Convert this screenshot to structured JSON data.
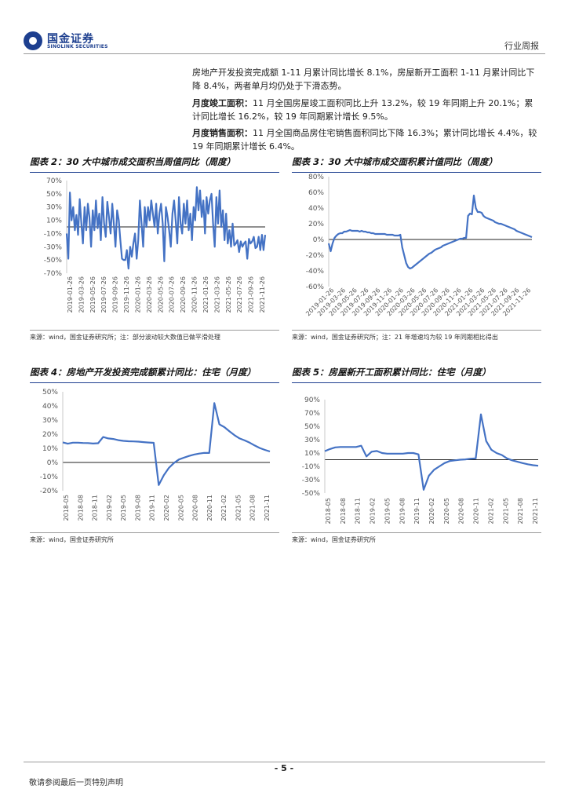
{
  "header": {
    "logo_cn": "国金证券",
    "logo_en": "SINOLINK SECURITIES",
    "doc_type": "行业周报"
  },
  "paragraphs": {
    "p1": "房地产开发投资完成额 1-11 月累计同比增长 8.1%，房屋新开工面积 1-11 月累计同比下降 8.4%，两者单月均仍处于下滑态势。",
    "p2_label": "月度竣工面积：",
    "p2_text": "11 月全国房屋竣工面积同比上升 13.2%，较 19 年同期上升 20.1%；累计同比增长 16.2%，较 19 年同期累计增长 9.5%。",
    "p3_label": "月度销售面积：",
    "p3_text": "11 月全国商品房住宅销售面积同比下降 16.3%；累计同比增长 4.4%，较 19 年同期累计增长 6.4%。"
  },
  "figures": {
    "fig2": {
      "title": "图表 2：30 大中城市成交面积当周值同比（周度）",
      "source": "来源：wind，国金证券研究所；注：部分波动较大数值已做平滑处理"
    },
    "fig3": {
      "title": "图表 3：30 大中城市成交面积累计值同比（周度）",
      "source": "来源：wind，国金证券研究所；注：21 年增速均为较 19 年同期相比得出"
    },
    "fig4": {
      "title": "图表 4：房地产开发投资完成额累计同比：住宅（月度）",
      "source": "来源：wind，国金证券研究所"
    },
    "fig5": {
      "title": "图表 5：房屋新开工面积累计同比：住宅（月度）",
      "source": "来源：wind，国金证券研究所"
    }
  },
  "footer": {
    "page_number": "- 5 -",
    "disclaimer": "敬请参阅最后一页特别声明"
  },
  "chart_data": [
    {
      "id": "fig2",
      "type": "line",
      "title": "30 大中城市成交面积当周值同比（周度）",
      "y_unit": "%",
      "ylim": [
        -70,
        70
      ],
      "yticks": [
        70,
        50,
        30,
        10,
        -10,
        -30,
        -50,
        -70
      ],
      "x_tick_labels": [
        "2019-01-26",
        "2019-03-26",
        "2019-05-26",
        "2019-07-26",
        "2019-09-26",
        "2019-11-26",
        "2020-01-26",
        "2020-03-26",
        "2020-05-26",
        "2020-07-26",
        "2020-09-26",
        "2020-11-26",
        "2021-01-26",
        "2021-03-26",
        "2021-05-26",
        "2021-07-26",
        "2021-09-26",
        "2021-11-26"
      ],
      "series": [
        {
          "name": "当周值同比",
          "color": "#4472c4",
          "values": [
            -10,
            -48,
            52,
            10,
            30,
            -5,
            18,
            -12,
            42,
            5,
            -25,
            30,
            -5,
            35,
            15,
            -30,
            25,
            -5,
            40,
            -2,
            20,
            -20,
            45,
            5,
            -15,
            38,
            15,
            -10,
            35,
            5,
            -30,
            25,
            10,
            -20,
            -48,
            -50,
            -50,
            -35,
            -63,
            -30,
            -45,
            -25,
            -10,
            -48,
            -20,
            40,
            5,
            -30,
            30,
            0,
            30,
            10,
            40,
            20,
            0,
            35,
            -10,
            20,
            35,
            5,
            -52,
            30,
            15,
            -5,
            -30,
            20,
            40,
            10,
            -25,
            45,
            5,
            -10,
            35,
            5,
            40,
            -5,
            20,
            -20,
            30,
            10,
            60,
            25,
            55,
            15,
            40,
            -10,
            45,
            20,
            40,
            50,
            5,
            -30,
            45,
            5,
            55,
            0,
            25,
            -20,
            20,
            -25,
            -5,
            -30,
            5,
            -28,
            -25,
            -20,
            -38,
            -22,
            -30,
            -25,
            -22,
            -48,
            -18,
            -25,
            -22,
            -15,
            -32,
            -30,
            -15,
            -35,
            -12,
            -35,
            -12
          ]
        }
      ]
    },
    {
      "id": "fig3",
      "type": "line",
      "title": "30 大中城市成交面积累计值同比（周度）",
      "y_unit": "%",
      "ylim": [
        -60,
        80
      ],
      "yticks": [
        80,
        60,
        40,
        20,
        0,
        -20,
        -40,
        -60
      ],
      "x_tick_labels": [
        "2019-01-26",
        "2019-03-26",
        "2019-05-26",
        "2019-07-26",
        "2019-09-26",
        "2019-11-26",
        "2020-01-26",
        "2020-03-26",
        "2020-05-26",
        "2020-07-26",
        "2020-09-26",
        "2020-11-26",
        "2021-01-26",
        "2021-03-26",
        "2021-05-26",
        "2021-07-26",
        "2021-09-26",
        "2021-11-26"
      ],
      "series": [
        {
          "name": "累计值同比",
          "color": "#4472c4",
          "values": [
            -5,
            -15,
            -5,
            2,
            5,
            7,
            8,
            8,
            10,
            10,
            11,
            12,
            11,
            11,
            11,
            11,
            10,
            11,
            10,
            10,
            9,
            9,
            8,
            8,
            7,
            7,
            7,
            7,
            7,
            7,
            6,
            6,
            6,
            6,
            5,
            5,
            5,
            6,
            -10,
            -20,
            -30,
            -35,
            -37,
            -36,
            -34,
            -32,
            -30,
            -28,
            -26,
            -24,
            -22,
            -20,
            -18,
            -17,
            -15,
            -13,
            -12,
            -11,
            -10,
            -8,
            -7,
            -6,
            -5,
            -4,
            -3,
            -2,
            -1,
            0,
            1,
            1,
            2,
            2,
            30,
            33,
            32,
            56,
            40,
            35,
            35,
            34,
            30,
            28,
            27,
            26,
            25,
            24,
            22,
            21,
            20,
            20,
            19,
            18,
            17,
            16,
            15,
            14,
            13,
            11,
            10,
            9,
            8,
            7,
            6,
            5,
            4,
            3
          ]
        }
      ]
    },
    {
      "id": "fig4",
      "type": "line",
      "title": "房地产开发投资完成额累计同比：住宅（月度）",
      "y_unit": "%",
      "ylim": [
        -20,
        50
      ],
      "yticks": [
        50,
        40,
        30,
        20,
        10,
        0,
        -10,
        -20
      ],
      "x_tick_labels": [
        "2018-05",
        "2018-08",
        "2018-11",
        "2019-02",
        "2019-05",
        "2019-08",
        "2019-11",
        "2020-02",
        "2020-05",
        "2020-08",
        "2020-11",
        "2021-02",
        "2021-05",
        "2021-08",
        "2021-11"
      ],
      "series": [
        {
          "name": "累计同比",
          "color": "#4472c4",
          "values": [
            14.2,
            13.3,
            14.0,
            14.0,
            13.8,
            13.7,
            13.4,
            13.6,
            18.0,
            17.0,
            16.6,
            15.8,
            15.3,
            15.0,
            14.9,
            14.7,
            14.4,
            14.1,
            13.9,
            -16.0,
            -9.0,
            -3.9,
            -0.4,
            2.1,
            3.4,
            4.6,
            5.6,
            6.3,
            6.8,
            6.7,
            42.0,
            27.0,
            25.0,
            22.0,
            19.3,
            17.0,
            15.6,
            14.0,
            12.0,
            10.2,
            8.9,
            7.8
          ]
        }
      ]
    },
    {
      "id": "fig5",
      "type": "line",
      "title": "房屋新开工面积累计同比：住宅（月度）",
      "y_unit": "%",
      "ylim": [
        -50,
        90
      ],
      "yticks": [
        90,
        70,
        50,
        30,
        10,
        -10,
        -30,
        -50
      ],
      "x_tick_labels": [
        "2018-05",
        "2018-08",
        "2018-11",
        "2019-02",
        "2019-05",
        "2019-08",
        "2019-11",
        "2020-02",
        "2020-05",
        "2020-08",
        "2020-11",
        "2021-02",
        "2021-05",
        "2021-08",
        "2021-11"
      ],
      "series": [
        {
          "name": "累计同比",
          "color": "#4472c4",
          "values": [
            12.8,
            16.0,
            18.5,
            19.0,
            19.0,
            19.0,
            19.0,
            21.0,
            5.0,
            12.0,
            13.0,
            10.0,
            9.0,
            9.0,
            9.0,
            9.0,
            10.0,
            10.0,
            8.0,
            -45.0,
            -24.0,
            -15.0,
            -10.0,
            -5.0,
            -2.0,
            -1.0,
            0.0,
            0.5,
            1.5,
            2.0,
            68.0,
            28.0,
            15.0,
            10.0,
            7.0,
            2.0,
            -1.0,
            -3.0,
            -5.0,
            -6.8,
            -8.2,
            -9.0
          ]
        }
      ]
    }
  ]
}
